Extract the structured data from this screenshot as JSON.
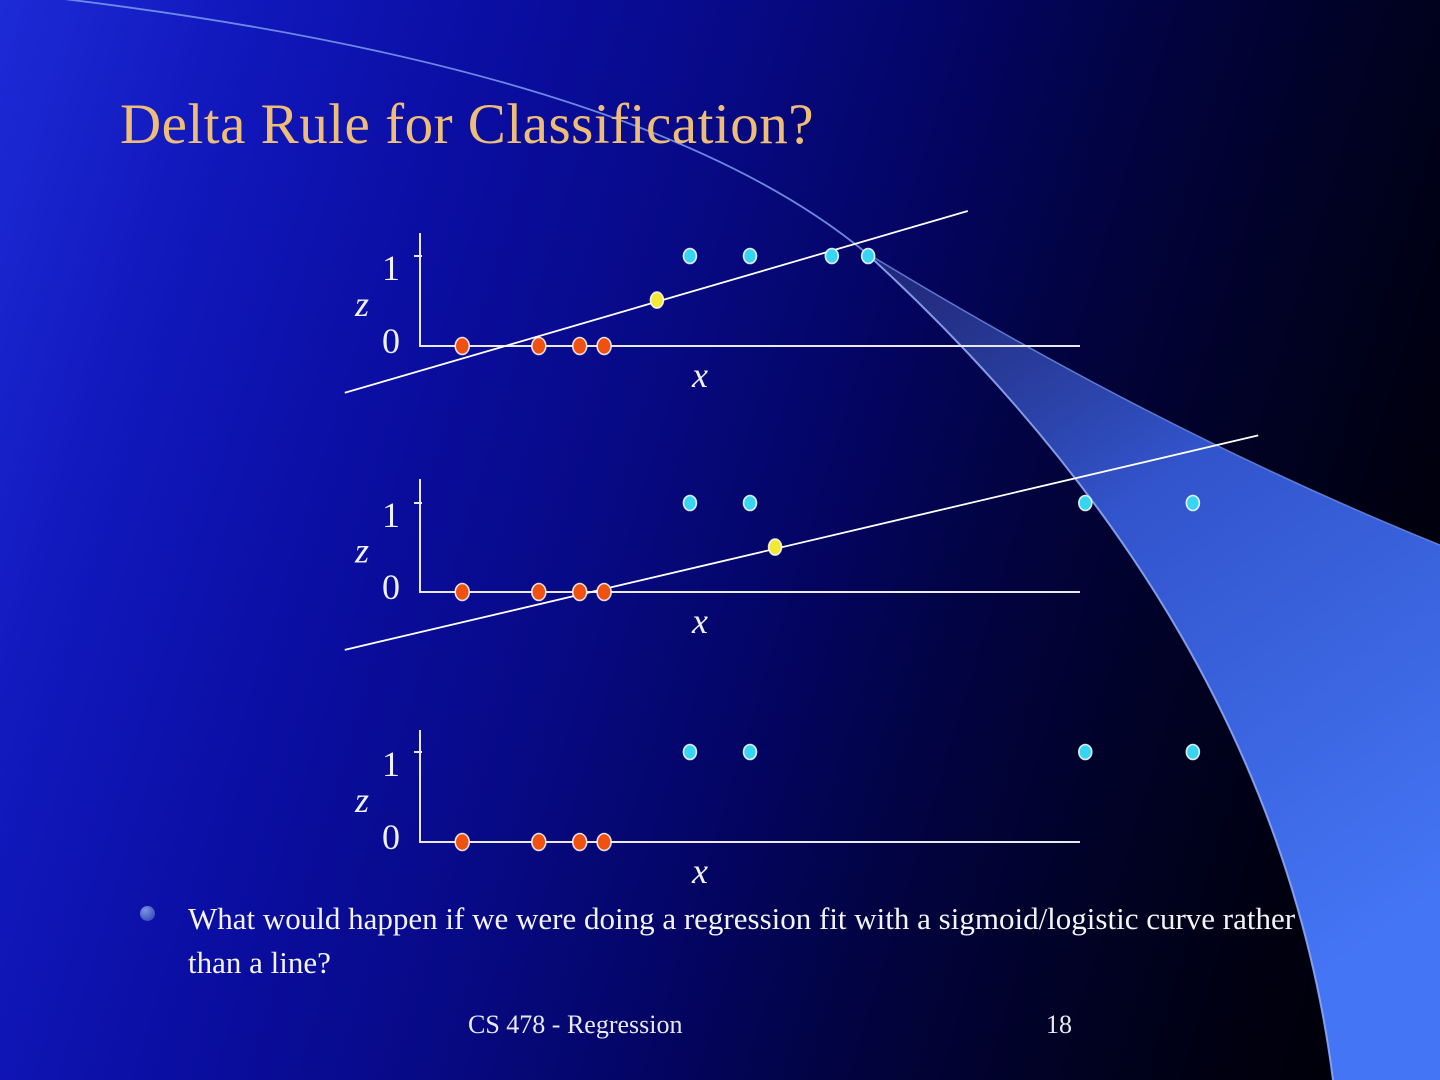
{
  "slide": {
    "title": "Delta Rule for Classification?"
  },
  "bullet": {
    "text": "What would happen if we were doing a regression fit with a sigmoid/logistic curve rather than a line?"
  },
  "footer": {
    "course": "CS 478 - Regression",
    "page": "18"
  },
  "colors": {
    "title": "#efbe76",
    "body_text": "#f4f4f8",
    "axis": "#e9e9f4",
    "axis_text": "#eff0f8",
    "fit_line": "#ffffff",
    "class0_orange": "#ee5110",
    "class1_cyan": "#38d5f2",
    "fit_point_yellow": "#f2e838",
    "swoosh_band": "#4475f4",
    "bg_bright_left": "#1d2bd6",
    "bg_dark_right": "#000005"
  },
  "chart_data": [
    {
      "type": "scatter",
      "title": "",
      "xlabel": "x",
      "ylabel": "z",
      "yticks": [
        "0",
        "1"
      ],
      "ylim": [
        0,
        1
      ],
      "x_units": "fraction of drawn x-axis length (x-axis is unlabeled)",
      "grid": false,
      "series": [
        {
          "id": "class-0",
          "name": "examples with target z = 0",
          "color": "#ee5110",
          "points": [
            {
              "x": 0.064,
              "z": 0
            },
            {
              "x": 0.18,
              "z": 0
            },
            {
              "x": 0.242,
              "z": 0
            },
            {
              "x": 0.279,
              "z": 0
            }
          ]
        },
        {
          "id": "class-1",
          "name": "examples with target z = 1",
          "color": "#38d5f2",
          "points": [
            {
              "x": 0.409,
              "z": 1
            },
            {
              "x": 0.5,
              "z": 1
            },
            {
              "x": 0.624,
              "z": 1
            },
            {
              "x": 0.679,
              "z": 1
            }
          ]
        },
        {
          "id": "fit-point",
          "name": "point on regression line near z = 0.5",
          "color": "#f2e838",
          "points": [
            {
              "x": 0.359,
              "z": 0.51
            }
          ]
        }
      ],
      "fit_line": {
        "x1": -0.114,
        "z1": -0.52,
        "x2": 0.83,
        "z2": 1.5
      }
    },
    {
      "type": "scatter",
      "title": "",
      "xlabel": "x",
      "ylabel": "z",
      "yticks": [
        "0",
        "1"
      ],
      "ylim": [
        0,
        1
      ],
      "x_units": "fraction of drawn x-axis length (x-axis is unlabeled)",
      "grid": false,
      "series": [
        {
          "id": "class-0",
          "name": "examples with target z = 0",
          "color": "#ee5110",
          "points": [
            {
              "x": 0.064,
              "z": 0
            },
            {
              "x": 0.18,
              "z": 0
            },
            {
              "x": 0.242,
              "z": 0
            },
            {
              "x": 0.279,
              "z": 0
            }
          ]
        },
        {
          "id": "class-1",
          "name": "examples with target z = 1 (two far-right outliers)",
          "color": "#38d5f2",
          "points": [
            {
              "x": 0.409,
              "z": 1
            },
            {
              "x": 0.5,
              "z": 1
            },
            {
              "x": 1.008,
              "z": 1
            },
            {
              "x": 1.171,
              "z": 1
            }
          ]
        },
        {
          "id": "fit-point",
          "name": "point on regression line near z = 0.5",
          "color": "#f2e838",
          "points": [
            {
              "x": 0.538,
              "z": 0.505
            }
          ]
        }
      ],
      "fit_line": {
        "x1": -0.114,
        "z1": -0.65,
        "x2": 1.27,
        "z2": 1.76
      }
    },
    {
      "type": "scatter",
      "title": "",
      "xlabel": "x",
      "ylabel": "z",
      "yticks": [
        "0",
        "1"
      ],
      "ylim": [
        0,
        1
      ],
      "x_units": "fraction of drawn x-axis length (x-axis is unlabeled)",
      "grid": false,
      "series": [
        {
          "id": "class-0",
          "name": "examples with target z = 0",
          "color": "#ee5110",
          "points": [
            {
              "x": 0.064,
              "z": 0
            },
            {
              "x": 0.18,
              "z": 0
            },
            {
              "x": 0.242,
              "z": 0
            },
            {
              "x": 0.279,
              "z": 0
            }
          ]
        },
        {
          "id": "class-1",
          "name": "examples with target z = 1 (two far-right outliers)",
          "color": "#38d5f2",
          "points": [
            {
              "x": 0.409,
              "z": 1
            },
            {
              "x": 0.5,
              "z": 1
            },
            {
              "x": 1.008,
              "z": 1
            },
            {
              "x": 1.171,
              "z": 1
            }
          ]
        }
      ],
      "fit_line": null
    }
  ]
}
